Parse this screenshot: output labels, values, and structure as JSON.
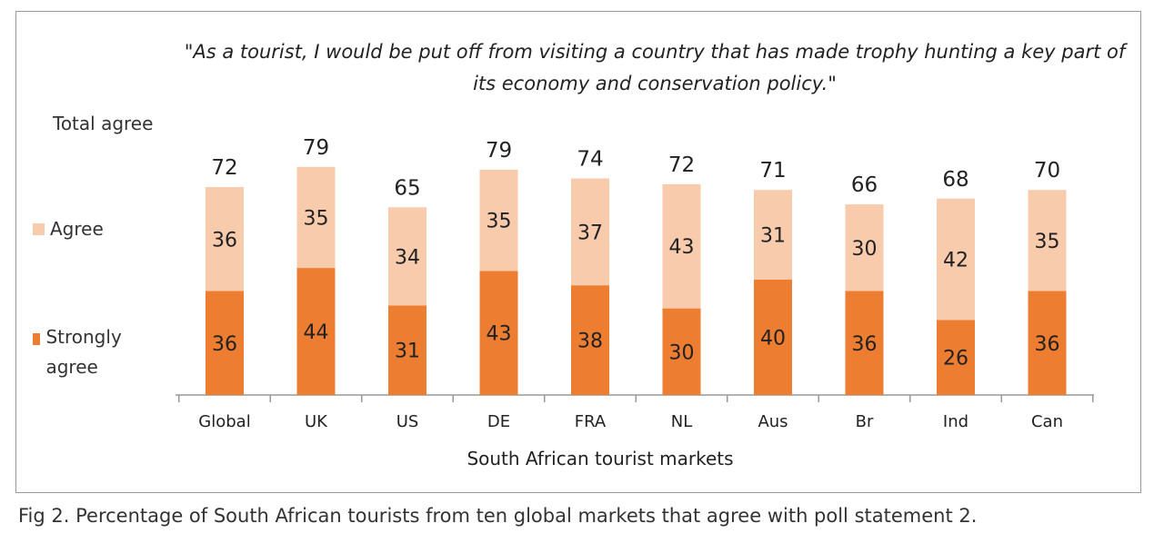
{
  "chart_data": {
    "type": "bar",
    "stacked": true,
    "title": "\"As a tourist, I would be put off from visiting a country that has made trophy hunting a key part of its economy and conservation policy.\"",
    "xlabel": "South African tourist markets",
    "total_label": "Total agree",
    "categories": [
      "Global",
      "UK",
      "US",
      "DE",
      "FRA",
      "NL",
      "Aus",
      "Br",
      "Ind",
      "Can"
    ],
    "series": [
      {
        "name": "Strongly agree",
        "color": "#ED7D31",
        "values": [
          36,
          44,
          31,
          43,
          38,
          30,
          40,
          36,
          26,
          36
        ]
      },
      {
        "name": "Agree",
        "color": "#F8CBAD",
        "values": [
          36,
          35,
          34,
          35,
          37,
          43,
          31,
          30,
          42,
          35
        ]
      }
    ],
    "totals": [
      72,
      79,
      65,
      79,
      74,
      72,
      71,
      66,
      68,
      70
    ],
    "legend": "left",
    "grid": false
  },
  "caption": "Fig 2. Percentage of South African tourists from ten global markets that agree with poll statement 2."
}
